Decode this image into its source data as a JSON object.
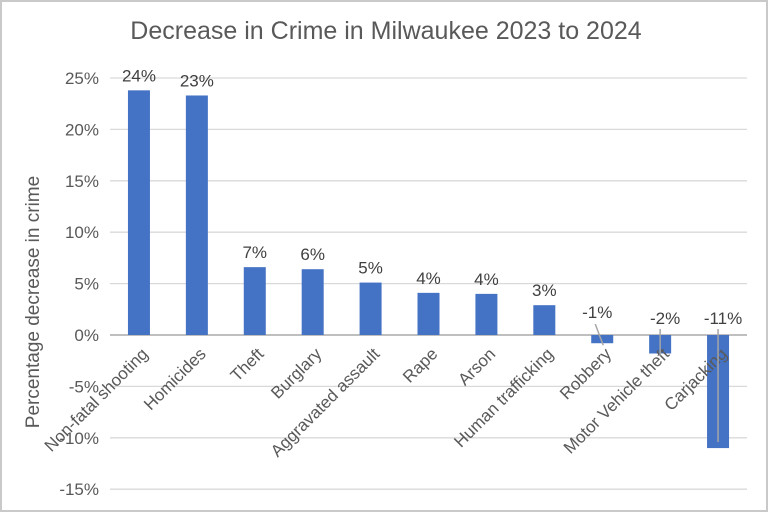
{
  "chart_data": {
    "type": "bar",
    "title": "Decrease in Crime in Milwaukee 2023 to 2024",
    "xlabel": "",
    "ylabel": "Percentage decrease in crime",
    "categories": [
      "Non-fatal shooting",
      "Homicides",
      "Theft",
      "Burglary",
      "Aggravated assault",
      "Rape",
      "Arson",
      "Human trafficking",
      "Robbery",
      "Motor Vehicle theft",
      "Carjacking"
    ],
    "values": [
      23.8,
      23.3,
      6.6,
      6.4,
      5.1,
      4.1,
      4.0,
      2.9,
      -0.8,
      -1.8,
      -11.0
    ],
    "data_labels": [
      "24%",
      "23%",
      "7%",
      "6%",
      "5%",
      "4%",
      "4%",
      "3%",
      "-1%",
      "-2%",
      "-11%"
    ],
    "y_ticks": [
      25,
      20,
      15,
      10,
      5,
      0,
      -5,
      -10,
      -15
    ],
    "y_tick_labels": [
      "25%",
      "20%",
      "15%",
      "10%",
      "5%",
      "0%",
      "-5%",
      "-10%",
      "-15%"
    ],
    "ylim": [
      -15,
      25
    ],
    "grid": true,
    "legend": false,
    "negative_labels_above_axis_with_leader_lines": true,
    "colors": {
      "bar": "#4472C4",
      "gridline": "#D9D9D9",
      "axis_line": "#BFBFBF",
      "tick_label": "#595959",
      "category_label": "#595959",
      "data_label": "#404040",
      "title": "#595959",
      "leader_line": "#A6A6A6"
    }
  }
}
